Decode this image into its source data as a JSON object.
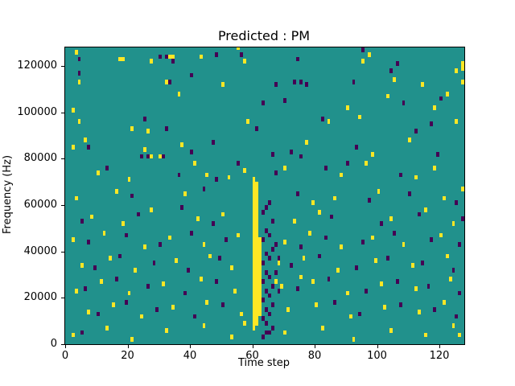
{
  "chart_data": {
    "type": "heatmap",
    "title": "Predicted : PM",
    "xlabel": "Time step",
    "ylabel": "Frequency (Hz)",
    "xlim": [
      0,
      128
    ],
    "ylim": [
      0,
      128000
    ],
    "x_ticks": [
      0,
      20,
      40,
      60,
      80,
      100,
      120
    ],
    "y_ticks": [
      0,
      20000,
      40000,
      60000,
      80000,
      100000,
      120000
    ],
    "grid": false,
    "legend": "none",
    "colors": {
      "background_mid": "#21918c",
      "high_yellow": "#fde725",
      "low_purple": "#440154",
      "figure_background": "#ffffff",
      "axis": "#000000"
    },
    "cell_units": {
      "x_step": 1,
      "y_hz": 2000
    },
    "yellow_band_columns": [
      {
        "x": 60,
        "y0_khz": 6,
        "y1_khz": 70
      },
      {
        "x": 61,
        "y0_khz": 8,
        "y1_khz": 68
      },
      {
        "x": 62,
        "y0_khz": 12,
        "y1_khz": 44
      }
    ],
    "yellow_cells_khz": [
      [
        3,
        125
      ],
      [
        4,
        112
      ],
      [
        2,
        100
      ],
      [
        4,
        95
      ],
      [
        2,
        84
      ],
      [
        6,
        87
      ],
      [
        3,
        62
      ],
      [
        8,
        54
      ],
      [
        2,
        44
      ],
      [
        5,
        33
      ],
      [
        3,
        22
      ],
      [
        7,
        13
      ],
      [
        2,
        3
      ],
      [
        13,
        6
      ],
      [
        10,
        73
      ],
      [
        12,
        47
      ],
      [
        11,
        26
      ],
      [
        15,
        16
      ],
      [
        14,
        36
      ],
      [
        16,
        65
      ],
      [
        18,
        51
      ],
      [
        17,
        122
      ],
      [
        18,
        122
      ],
      [
        20,
        70
      ],
      [
        20,
        21
      ],
      [
        21,
        92
      ],
      [
        22,
        31
      ],
      [
        24,
        11
      ],
      [
        21,
        1
      ],
      [
        25,
        83
      ],
      [
        27,
        80
      ],
      [
        27,
        121
      ],
      [
        26,
        91
      ],
      [
        27,
        57
      ],
      [
        25,
        41
      ],
      [
        31,
        25
      ],
      [
        32,
        5
      ],
      [
        33,
        123
      ],
      [
        34,
        123
      ],
      [
        32,
        112
      ],
      [
        30,
        80
      ],
      [
        33,
        45
      ],
      [
        35,
        35
      ],
      [
        34,
        15
      ],
      [
        37,
        85
      ],
      [
        38,
        64
      ],
      [
        36,
        107
      ],
      [
        41,
        77
      ],
      [
        43,
        123
      ],
      [
        43,
        27
      ],
      [
        42,
        53
      ],
      [
        44,
        42
      ],
      [
        44,
        7
      ],
      [
        45,
        72
      ],
      [
        46,
        37
      ],
      [
        45,
        17
      ],
      [
        50,
        111
      ],
      [
        50,
        55
      ],
      [
        52,
        71
      ],
      [
        53,
        32
      ],
      [
        53,
        2
      ],
      [
        54,
        22
      ],
      [
        55,
        127
      ],
      [
        55,
        46
      ],
      [
        56,
        12
      ],
      [
        57,
        121
      ],
      [
        57,
        74
      ],
      [
        57,
        8
      ],
      [
        58,
        95
      ],
      [
        68,
        34
      ],
      [
        69,
        24
      ],
      [
        70,
        75
      ],
      [
        70,
        43
      ],
      [
        70,
        4
      ],
      [
        71,
        14
      ],
      [
        73,
        52
      ],
      [
        75,
        28
      ],
      [
        76,
        36
      ],
      [
        77,
        86
      ],
      [
        78,
        47
      ],
      [
        79,
        60
      ],
      [
        79,
        26
      ],
      [
        80,
        16
      ],
      [
        81,
        56
      ],
      [
        82,
        6
      ],
      [
        84,
        95
      ],
      [
        86,
        62
      ],
      [
        87,
        31
      ],
      [
        88,
        72
      ],
      [
        88,
        41
      ],
      [
        90,
        101
      ],
      [
        90,
        21
      ],
      [
        91,
        11
      ],
      [
        92,
        1
      ],
      [
        94,
        97
      ],
      [
        95,
        121
      ],
      [
        96,
        77
      ],
      [
        97,
        124
      ],
      [
        98,
        81
      ],
      [
        98,
        45
      ],
      [
        99,
        35
      ],
      [
        100,
        65
      ],
      [
        101,
        25
      ],
      [
        102,
        15
      ],
      [
        103,
        106
      ],
      [
        104,
        53
      ],
      [
        104,
        5
      ],
      [
        105,
        113
      ],
      [
        108,
        42
      ],
      [
        110,
        87
      ],
      [
        111,
        33
      ],
      [
        112,
        71
      ],
      [
        112,
        23
      ],
      [
        113,
        13
      ],
      [
        114,
        111
      ],
      [
        115,
        57
      ],
      [
        115,
        3
      ],
      [
        118,
        101
      ],
      [
        118,
        75
      ],
      [
        120,
        46
      ],
      [
        121,
        62
      ],
      [
        121,
        17
      ],
      [
        122,
        107
      ],
      [
        122,
        37
      ],
      [
        123,
        27
      ],
      [
        124,
        51
      ],
      [
        124,
        7
      ],
      [
        125,
        117
      ],
      [
        125,
        95
      ],
      [
        126,
        3
      ],
      [
        127,
        120
      ],
      [
        127,
        118
      ],
      [
        128,
        119
      ],
      [
        127,
        112
      ],
      [
        127,
        66
      ],
      [
        67,
        26
      ]
    ],
    "purple_cells_khz": [
      [
        4,
        122
      ],
      [
        4,
        116
      ],
      [
        5,
        52
      ],
      [
        5,
        4
      ],
      [
        6,
        23
      ],
      [
        7,
        84
      ],
      [
        7,
        43
      ],
      [
        9,
        32
      ],
      [
        10,
        12
      ],
      [
        13,
        75
      ],
      [
        16,
        27
      ],
      [
        17,
        37
      ],
      [
        19,
        46
      ],
      [
        19,
        17
      ],
      [
        21,
        63
      ],
      [
        23,
        55
      ],
      [
        24,
        80
      ],
      [
        25,
        96
      ],
      [
        26,
        24
      ],
      [
        26,
        80
      ],
      [
        28,
        34
      ],
      [
        29,
        14
      ],
      [
        30,
        123
      ],
      [
        30,
        42
      ],
      [
        31,
        80
      ],
      [
        32,
        123
      ],
      [
        32,
        92
      ],
      [
        33,
        112
      ],
      [
        34,
        121
      ],
      [
        36,
        72
      ],
      [
        37,
        58
      ],
      [
        38,
        21
      ],
      [
        39,
        31
      ],
      [
        40,
        115
      ],
      [
        40,
        82
      ],
      [
        40,
        47
      ],
      [
        41,
        11
      ],
      [
        44,
        66
      ],
      [
        47,
        86
      ],
      [
        47,
        51
      ],
      [
        48,
        124
      ],
      [
        48,
        70
      ],
      [
        48,
        26
      ],
      [
        49,
        36
      ],
      [
        50,
        16
      ],
      [
        51,
        44
      ],
      [
        55,
        77
      ],
      [
        56,
        124
      ],
      [
        61,
        92
      ],
      [
        63,
        103
      ],
      [
        66,
        81
      ],
      [
        67,
        111
      ],
      [
        67,
        73
      ],
      [
        70,
        104
      ],
      [
        72,
        82
      ],
      [
        72,
        33
      ],
      [
        73,
        112
      ],
      [
        74,
        122
      ],
      [
        74,
        64
      ],
      [
        74,
        23
      ],
      [
        75,
        112
      ],
      [
        75,
        80
      ],
      [
        75,
        41
      ],
      [
        77,
        111
      ],
      [
        81,
        37
      ],
      [
        82,
        96
      ],
      [
        83,
        75
      ],
      [
        83,
        45
      ],
      [
        84,
        27
      ],
      [
        85,
        54
      ],
      [
        86,
        17
      ],
      [
        90,
        77
      ],
      [
        92,
        112
      ],
      [
        93,
        84
      ],
      [
        93,
        32
      ],
      [
        94,
        12
      ],
      [
        95,
        126
      ],
      [
        95,
        43
      ],
      [
        96,
        22
      ],
      [
        97,
        61
      ],
      [
        101,
        51
      ],
      [
        103,
        36
      ],
      [
        104,
        117
      ],
      [
        105,
        47
      ],
      [
        106,
        120
      ],
      [
        106,
        26
      ],
      [
        107,
        72
      ],
      [
        107,
        16
      ],
      [
        108,
        103
      ],
      [
        110,
        64
      ],
      [
        112,
        91
      ],
      [
        113,
        55
      ],
      [
        114,
        34
      ],
      [
        116,
        24
      ],
      [
        117,
        94
      ],
      [
        117,
        44
      ],
      [
        118,
        14
      ],
      [
        119,
        81
      ],
      [
        120,
        105
      ],
      [
        124,
        31
      ],
      [
        125,
        60
      ],
      [
        125,
        11
      ],
      [
        126,
        42
      ],
      [
        126,
        21
      ],
      [
        127,
        53
      ],
      [
        63,
        2
      ],
      [
        64,
        4
      ],
      [
        65,
        4
      ],
      [
        66,
        6
      ],
      [
        63,
        10
      ],
      [
        63,
        18
      ],
      [
        63,
        26
      ],
      [
        63,
        34
      ],
      [
        63,
        44
      ],
      [
        63,
        56
      ],
      [
        64,
        8
      ],
      [
        64,
        14
      ],
      [
        64,
        22
      ],
      [
        64,
        30
      ],
      [
        64,
        38
      ],
      [
        64,
        48
      ],
      [
        64,
        58
      ],
      [
        65,
        12
      ],
      [
        65,
        20
      ],
      [
        65,
        28
      ],
      [
        65,
        36
      ],
      [
        65,
        46
      ],
      [
        65,
        60
      ],
      [
        66,
        16
      ],
      [
        66,
        24
      ],
      [
        66,
        40
      ],
      [
        66,
        52
      ],
      [
        67,
        30
      ],
      [
        67,
        42
      ],
      [
        68,
        22
      ],
      [
        68,
        36
      ]
    ]
  }
}
